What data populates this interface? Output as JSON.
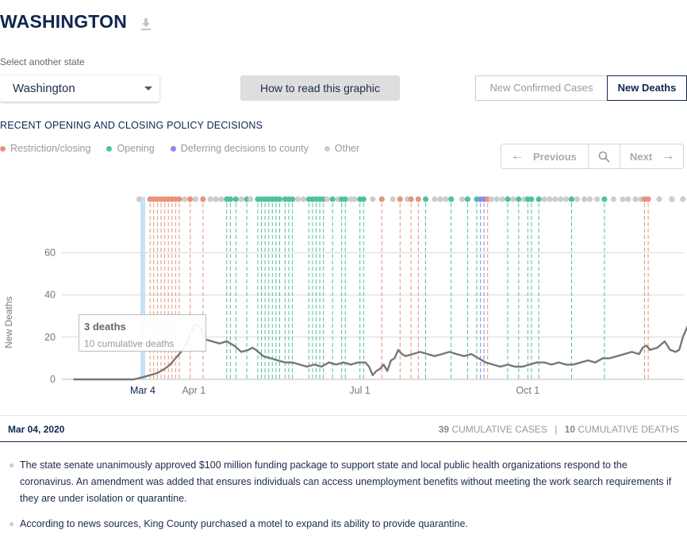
{
  "header": {
    "state_title": "WASHINGTON"
  },
  "selector": {
    "label": "Select another state",
    "value": "Washington",
    "how_to_read_label": "How to read this graphic"
  },
  "toggle": {
    "cases_label": "New Confirmed Cases",
    "deaths_label": "New Deaths",
    "active": "New Deaths"
  },
  "policy": {
    "heading": "RECENT OPENING AND CLOSING POLICY DECISIONS",
    "legend": [
      {
        "label": "Restriction/closing",
        "color": "#e8937b"
      },
      {
        "label": "Opening",
        "color": "#4fc1a0"
      },
      {
        "label": "Deferring decisions to county",
        "color": "#8c8ce6"
      },
      {
        "label": "Other",
        "color": "#cccccc"
      }
    ]
  },
  "nav": {
    "previous_label": "Previous",
    "next_label": "Next"
  },
  "chart_data": {
    "type": "bar",
    "ylabel": "New Deaths",
    "ylim": [
      0,
      75
    ],
    "yticks": [
      0,
      20,
      40,
      60
    ],
    "x_range_days": [
      0,
      305
    ],
    "xticks": [
      {
        "label": "Mar 4",
        "day": 0,
        "highlight": true
      },
      {
        "label": "Apr 1",
        "day": 28
      },
      {
        "label": "Jul 1",
        "day": 119
      },
      {
        "label": "Oct 1",
        "day": 211
      }
    ],
    "selected_day": 0,
    "rolling_average": [
      [
        -38,
        0
      ],
      [
        -5,
        0
      ],
      [
        0,
        1
      ],
      [
        4,
        2
      ],
      [
        8,
        3
      ],
      [
        12,
        5
      ],
      [
        15,
        7
      ],
      [
        18,
        10
      ],
      [
        21,
        13
      ],
      [
        24,
        17
      ],
      [
        26,
        22
      ],
      [
        28,
        25
      ],
      [
        30,
        26
      ],
      [
        32,
        24
      ],
      [
        34,
        19
      ],
      [
        38,
        18
      ],
      [
        42,
        17
      ],
      [
        46,
        18
      ],
      [
        50,
        16
      ],
      [
        54,
        13
      ],
      [
        58,
        14
      ],
      [
        60,
        15
      ],
      [
        62,
        14
      ],
      [
        66,
        11
      ],
      [
        70,
        10
      ],
      [
        74,
        9
      ],
      [
        78,
        8
      ],
      [
        82,
        8
      ],
      [
        86,
        7
      ],
      [
        90,
        6
      ],
      [
        94,
        7
      ],
      [
        98,
        6
      ],
      [
        102,
        8
      ],
      [
        106,
        7
      ],
      [
        110,
        8
      ],
      [
        114,
        7
      ],
      [
        118,
        8
      ],
      [
        122,
        8
      ],
      [
        124,
        6
      ],
      [
        126,
        2
      ],
      [
        128,
        4
      ],
      [
        130,
        5
      ],
      [
        132,
        7
      ],
      [
        134,
        4
      ],
      [
        136,
        9
      ],
      [
        138,
        10
      ],
      [
        140,
        14
      ],
      [
        142,
        12
      ],
      [
        144,
        11
      ],
      [
        148,
        12
      ],
      [
        152,
        13
      ],
      [
        156,
        12
      ],
      [
        160,
        11
      ],
      [
        164,
        12
      ],
      [
        168,
        13
      ],
      [
        172,
        12
      ],
      [
        176,
        11
      ],
      [
        180,
        12
      ],
      [
        184,
        10
      ],
      [
        188,
        8
      ],
      [
        192,
        7
      ],
      [
        196,
        6
      ],
      [
        200,
        7
      ],
      [
        204,
        6
      ],
      [
        208,
        6
      ],
      [
        212,
        7
      ],
      [
        216,
        8
      ],
      [
        220,
        8
      ],
      [
        224,
        7
      ],
      [
        228,
        8
      ],
      [
        232,
        7
      ],
      [
        236,
        7
      ],
      [
        240,
        8
      ],
      [
        244,
        9
      ],
      [
        248,
        8
      ],
      [
        252,
        10
      ],
      [
        256,
        10
      ],
      [
        260,
        11
      ],
      [
        264,
        12
      ],
      [
        268,
        13
      ],
      [
        272,
        12
      ],
      [
        274,
        15
      ],
      [
        276,
        16
      ],
      [
        278,
        14
      ],
      [
        282,
        15
      ],
      [
        286,
        18
      ],
      [
        289,
        14
      ],
      [
        292,
        13
      ],
      [
        294,
        14
      ],
      [
        296,
        20
      ],
      [
        298,
        24
      ],
      [
        299,
        26
      ]
    ],
    "policy_markers": [
      {
        "day": -2,
        "type": "other"
      },
      {
        "day": 4,
        "type": "restriction"
      },
      {
        "day": 6,
        "type": "restriction"
      },
      {
        "day": 8,
        "type": "restriction"
      },
      {
        "day": 10,
        "type": "restriction"
      },
      {
        "day": 12,
        "type": "restriction"
      },
      {
        "day": 14,
        "type": "restriction"
      },
      {
        "day": 16,
        "type": "restriction"
      },
      {
        "day": 18,
        "type": "restriction"
      },
      {
        "day": 20,
        "type": "restriction"
      },
      {
        "day": 23,
        "type": "other"
      },
      {
        "day": 26,
        "type": "restriction"
      },
      {
        "day": 29,
        "type": "other"
      },
      {
        "day": 33,
        "type": "restriction"
      },
      {
        "day": 37,
        "type": "other"
      },
      {
        "day": 40,
        "type": "other"
      },
      {
        "day": 43,
        "type": "other"
      },
      {
        "day": 46,
        "type": "opening"
      },
      {
        "day": 48,
        "type": "opening"
      },
      {
        "day": 51,
        "type": "opening"
      },
      {
        "day": 54,
        "type": "other"
      },
      {
        "day": 57,
        "type": "opening"
      },
      {
        "day": 59,
        "type": "other"
      },
      {
        "day": 63,
        "type": "opening"
      },
      {
        "day": 65,
        "type": "opening"
      },
      {
        "day": 67,
        "type": "opening"
      },
      {
        "day": 69,
        "type": "opening"
      },
      {
        "day": 71,
        "type": "opening"
      },
      {
        "day": 73,
        "type": "opening"
      },
      {
        "day": 75,
        "type": "opening"
      },
      {
        "day": 78,
        "type": "opening"
      },
      {
        "day": 80,
        "type": "opening"
      },
      {
        "day": 82,
        "type": "opening"
      },
      {
        "day": 85,
        "type": "other"
      },
      {
        "day": 88,
        "type": "other"
      },
      {
        "day": 91,
        "type": "opening"
      },
      {
        "day": 93,
        "type": "opening"
      },
      {
        "day": 95,
        "type": "opening"
      },
      {
        "day": 97,
        "type": "opening"
      },
      {
        "day": 99,
        "type": "opening"
      },
      {
        "day": 101,
        "type": "other"
      },
      {
        "day": 104,
        "type": "opening"
      },
      {
        "day": 107,
        "type": "other"
      },
      {
        "day": 109,
        "type": "opening"
      },
      {
        "day": 111,
        "type": "opening"
      },
      {
        "day": 114,
        "type": "other"
      },
      {
        "day": 116,
        "type": "other"
      },
      {
        "day": 119,
        "type": "opening"
      },
      {
        "day": 121,
        "type": "opening"
      },
      {
        "day": 126,
        "type": "other"
      },
      {
        "day": 131,
        "type": "restriction"
      },
      {
        "day": 137,
        "type": "other"
      },
      {
        "day": 141,
        "type": "restriction"
      },
      {
        "day": 145,
        "type": "other"
      },
      {
        "day": 147,
        "type": "restriction"
      },
      {
        "day": 151,
        "type": "restriction"
      },
      {
        "day": 155,
        "type": "opening"
      },
      {
        "day": 160,
        "type": "other"
      },
      {
        "day": 163,
        "type": "other"
      },
      {
        "day": 166,
        "type": "other"
      },
      {
        "day": 169,
        "type": "opening"
      },
      {
        "day": 175,
        "type": "other"
      },
      {
        "day": 178,
        "type": "opening"
      },
      {
        "day": 183,
        "type": "opening"
      },
      {
        "day": 185,
        "type": "county"
      },
      {
        "day": 187,
        "type": "county"
      },
      {
        "day": 189,
        "type": "restriction"
      },
      {
        "day": 191,
        "type": "other"
      },
      {
        "day": 194,
        "type": "other"
      },
      {
        "day": 197,
        "type": "other"
      },
      {
        "day": 200,
        "type": "opening"
      },
      {
        "day": 203,
        "type": "other"
      },
      {
        "day": 206,
        "type": "opening"
      },
      {
        "day": 209,
        "type": "other"
      },
      {
        "day": 211,
        "type": "opening"
      },
      {
        "day": 213,
        "type": "opening"
      },
      {
        "day": 217,
        "type": "opening"
      },
      {
        "day": 220,
        "type": "other"
      },
      {
        "day": 223,
        "type": "other"
      },
      {
        "day": 226,
        "type": "other"
      },
      {
        "day": 229,
        "type": "other"
      },
      {
        "day": 232,
        "type": "other"
      },
      {
        "day": 235,
        "type": "opening"
      },
      {
        "day": 238,
        "type": "other"
      },
      {
        "day": 242,
        "type": "other"
      },
      {
        "day": 245,
        "type": "other"
      },
      {
        "day": 249,
        "type": "other"
      },
      {
        "day": 253,
        "type": "opening"
      },
      {
        "day": 258,
        "type": "other"
      },
      {
        "day": 263,
        "type": "other"
      },
      {
        "day": 266,
        "type": "other"
      },
      {
        "day": 270,
        "type": "other"
      },
      {
        "day": 273,
        "type": "other"
      },
      {
        "day": 275,
        "type": "restriction"
      },
      {
        "day": 277,
        "type": "restriction"
      },
      {
        "day": 283,
        "type": "other"
      },
      {
        "day": 290,
        "type": "other"
      },
      {
        "day": 296,
        "type": "other"
      }
    ]
  },
  "tooltip": {
    "primary": "3 deaths",
    "secondary": "10 cumulative deaths"
  },
  "footer": {
    "date": "Mar 04, 2020",
    "cumulative_cases_value": "39",
    "cumulative_cases_label": "CUMULATIVE CASES",
    "separator": "|",
    "cumulative_deaths_value": "10",
    "cumulative_deaths_label": "CUMULATIVE DEATHS"
  },
  "notes": [
    "The state senate unanimously approved $100 million funding package to support state and local public health organizations respond to the coronavirus. An amendment was added that ensures individuals can access unemployment benefits without meeting the work search requirements if they are under isolation or quarantine.",
    "According to news sources, King County purchased a motel to expand its ability to provide quarantine."
  ],
  "colors": {
    "restriction": "#e8937b",
    "opening": "#4fc1a0",
    "county": "#8c8ce6",
    "other": "#cccccc",
    "line": "#777777",
    "highlight": "#c8e2f4",
    "navy": "#0f2550"
  }
}
